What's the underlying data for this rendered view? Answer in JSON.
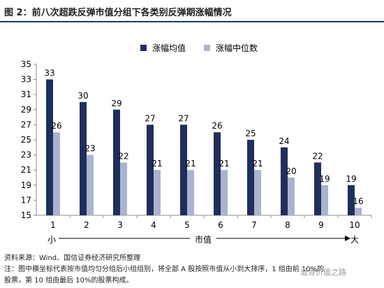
{
  "title": "图 2：前八次超跌反弹市值分组下各类别反弹期涨幅情况",
  "chart_data": {
    "type": "bar",
    "categories": [
      "1",
      "2",
      "3",
      "4",
      "5",
      "6",
      "7",
      "8",
      "9",
      "10"
    ],
    "series": [
      {
        "name": "涨幅均值",
        "color": "#1f2f5c",
        "values": [
          33,
          30,
          29,
          27,
          27,
          26,
          25,
          24,
          22,
          19
        ]
      },
      {
        "name": "涨幅中位数",
        "color": "#aab3cf",
        "values": [
          26,
          23,
          22,
          21,
          21,
          21,
          21,
          20,
          19,
          16
        ]
      }
    ],
    "xlabel": "",
    "ylabel": "",
    "ylim": [
      15,
      35
    ],
    "yticks": [
      15,
      17,
      19,
      21,
      23,
      25,
      27,
      29,
      31,
      33,
      35
    ],
    "grid": false,
    "legend": "top-center"
  },
  "scale": {
    "left_label": "小",
    "center_label": "市值",
    "right_label": "大"
  },
  "source": "资料来源：Wind、国信证券经济研究所整理",
  "note_lines": [
    "注：图中横坐标代表按市值均匀分组后小组组别，将全部 A 股按照市值从小到大排序，1 组由前 10%的",
    "股票，第 10 组由最后 10%的股票构成。"
  ],
  "watermark": "道哥价值之路"
}
